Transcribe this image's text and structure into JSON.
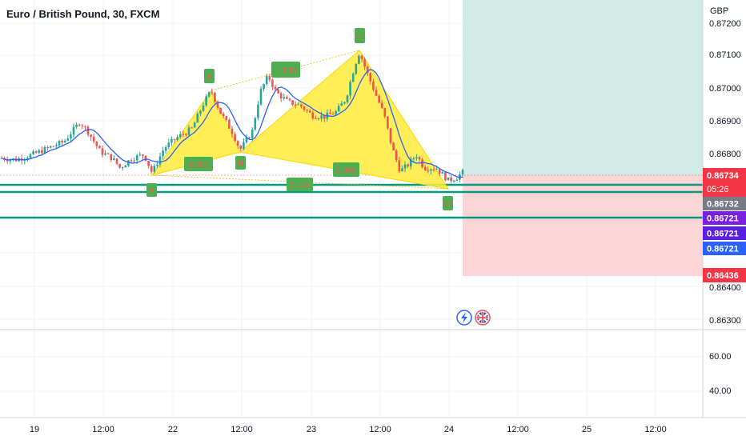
{
  "header": {
    "symbol_title": "Euro / British Pound, 30, FXCM",
    "currency": "GBP"
  },
  "colors": {
    "up": "#26a69a",
    "down": "#ef5350",
    "pattern_fill": "#ffeb3b",
    "pattern_label_bg": "#4caf50",
    "pattern_label_text": "#ff5252",
    "ma": "#2962ff",
    "level_line": "#089981",
    "target_zone": "#d1ece6",
    "stop_zone": "#fcd5d6",
    "price_tag_red": "#f23645",
    "price_tag_gray": "#787b86",
    "price_tag_purple": "#7b1fe2",
    "price_tag_blue": "#2962ff"
  },
  "price_axis": {
    "ticks": [
      "0.87200",
      "0.87100",
      "0.87000",
      "0.86900",
      "0.86800",
      "0.86400",
      "0.86300"
    ],
    "tags": [
      {
        "label": "0.86734",
        "color": "#f23645"
      },
      {
        "label": "05:26",
        "color": "#f23645"
      },
      {
        "label": "0.86732",
        "color": "#787b86"
      },
      {
        "label": "0.86721",
        "color": "#7b1fe2"
      },
      {
        "label": "0.86721",
        "color": "#5b1fe2"
      },
      {
        "label": "0.86721",
        "color": "#2962ff"
      },
      {
        "label": "0.86436",
        "color": "#f23645"
      }
    ]
  },
  "indicator_axis": {
    "ticks": [
      "60.00",
      "40.00"
    ]
  },
  "time_axis": {
    "labels": [
      "19",
      "12:00",
      "22",
      "12:00",
      "23",
      "12:00",
      "24",
      "12:00",
      "25",
      "12:00"
    ]
  },
  "pattern": {
    "points": [
      "X",
      "A",
      "B",
      "C",
      "D"
    ],
    "ratios": [
      "0.701",
      "1.658",
      "1.142",
      "1.383"
    ]
  },
  "events": {
    "flash_icon": "lightning-icon",
    "flag_icon": "uk-flag-icon"
  },
  "chart_data": {
    "type": "candlestick",
    "title": "Euro / British Pound, 30, FXCM",
    "ylabel": "GBP",
    "ylim": [
      0.8627,
      0.8722
    ],
    "x": [
      "19",
      "12:00",
      "22",
      "12:00",
      "23",
      "12:00",
      "24",
      "12:00",
      "25",
      "12:00"
    ],
    "harmonic_pattern": {
      "X": 0.86745,
      "A": 0.86995,
      "B": 0.86815,
      "C": 0.87112,
      "D": 0.86722,
      "ratios": {
        "XB": 0.701,
        "AC": 1.658,
        "XD": 1.142,
        "BD": 1.383
      }
    },
    "levels": [
      0.86734,
      0.86732,
      0.86721,
      0.86721,
      0.86721,
      0.86436
    ],
    "last_price": 0.86734,
    "countdown": "05:26",
    "trade_zone": {
      "target_top": 0.8722,
      "entry": 0.86734,
      "stop": 0.86436
    },
    "indicator_ticks": [
      60.0,
      40.0
    ]
  }
}
